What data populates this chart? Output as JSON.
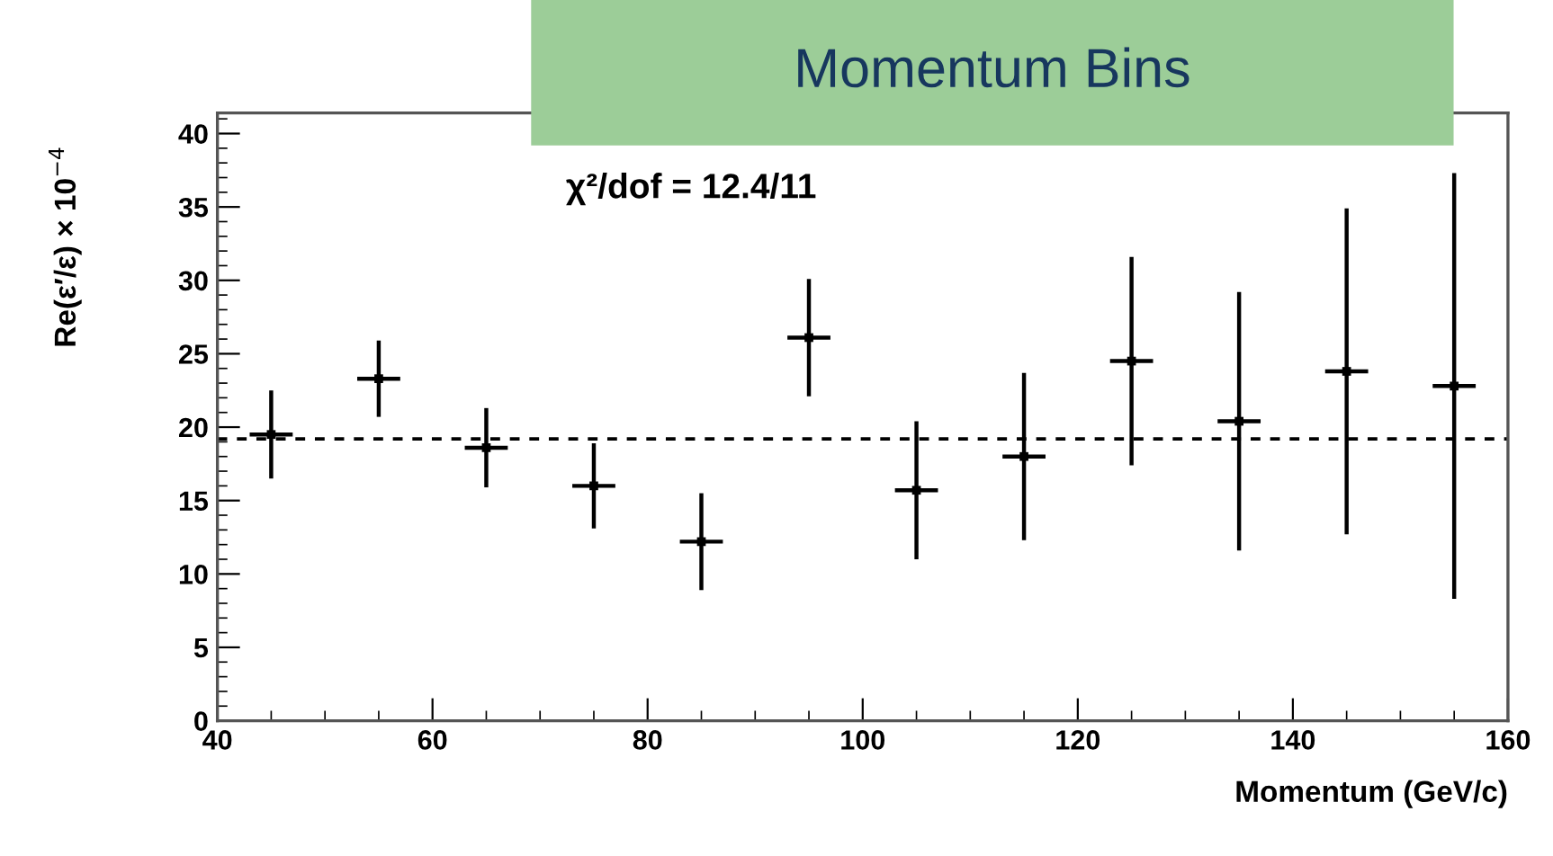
{
  "chart_data": {
    "type": "scatter",
    "title": "Momentum Bins",
    "xlabel": "Momentum (GeV/c)",
    "ylabel": "Re(ε′/ε) × 10$^{−4}$",
    "x": [
      45,
      55,
      65,
      75,
      85,
      95,
      105,
      115,
      125,
      135,
      145,
      155
    ],
    "series": [
      {
        "color": "#000000",
        "values": [
          19.5,
          23.3,
          18.6,
          16.0,
          12.2,
          26.1,
          15.7,
          18.0,
          24.5,
          20.4,
          23.8,
          22.8
        ],
        "errors": [
          3.0,
          2.6,
          2.7,
          2.9,
          3.3,
          4.0,
          4.7,
          5.7,
          7.1,
          8.8,
          11.1,
          14.5
        ],
        "xerrors": [
          2,
          2,
          2,
          2,
          2,
          2,
          2,
          2,
          2,
          2,
          2,
          2
        ]
      }
    ],
    "marker": "square",
    "xlim": [
      40,
      160
    ],
    "xticks": [
      40,
      60,
      80,
      100,
      120,
      140,
      160
    ],
    "ylim": [
      0,
      41.4
    ],
    "yticks": [
      0,
      5,
      10,
      15,
      20,
      25,
      30,
      35,
      40
    ],
    "ref_lines": [
      {
        "axis": "y",
        "value": 19.2,
        "line_style": "dashed",
        "color": "#000000"
      }
    ],
    "annotations": [
      {
        "text": "χ²/dof = 12.4/11"
      }
    ],
    "grid": false,
    "legend": false
  }
}
